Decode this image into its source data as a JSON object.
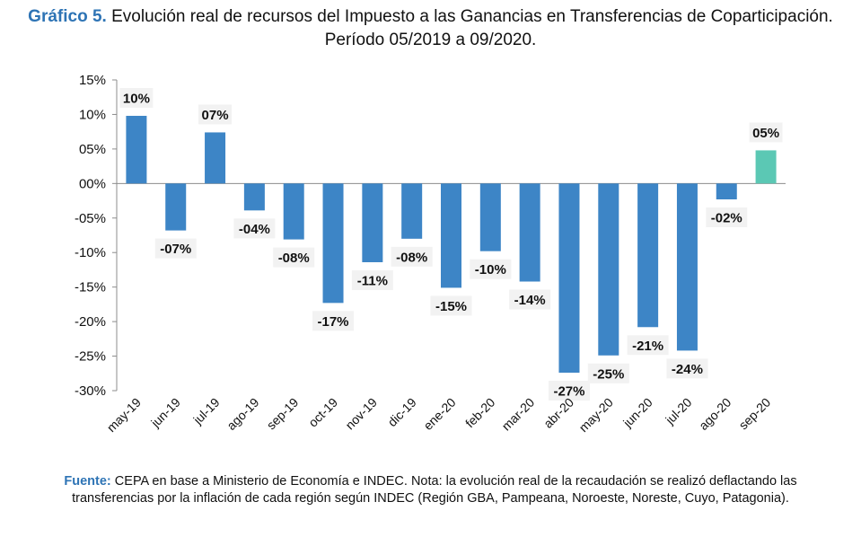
{
  "title": {
    "lead": "Gráfico 5.",
    "text": "Evolución real de recursos del Impuesto a las Ganancias en Transferencias de Coparticipación. Período 05/2019 a 09/2020."
  },
  "source": {
    "lead": "Fuente:",
    "text": "CEPA en base a Ministerio de Economía e INDEC. Nota: la evolución real de la recaudación se realizó deflactando las transferencias por la inflación de cada región según INDEC (Región GBA, Pampeana, Noroeste, Noreste, Cuyo, Patagonia)."
  },
  "colors": {
    "title_accent": "#2e74b5",
    "bar": "#3d85c6",
    "bar_highlight": "#5bc8b4",
    "label_bg": "#f2f2f2"
  },
  "chart_data": {
    "type": "bar",
    "categories": [
      "may-19",
      "jun-19",
      "jul-19",
      "ago-19",
      "sep-19",
      "oct-19",
      "nov-19",
      "dic-19",
      "ene-20",
      "feb-20",
      "mar-20",
      "abr-20",
      "may-20",
      "jun-20",
      "jul-20",
      "ago-20",
      "sep-20"
    ],
    "values": [
      9.8,
      -6.8,
      7.4,
      -3.9,
      -8.1,
      -17.3,
      -11.4,
      -8.0,
      -15.1,
      -9.8,
      -14.2,
      -27.4,
      -24.9,
      -20.8,
      -24.2,
      -2.3,
      4.8
    ],
    "data_labels": [
      "10%",
      "-07%",
      "07%",
      "-04%",
      "-08%",
      "-17%",
      "-11%",
      "-08%",
      "-15%",
      "-10%",
      "-14%",
      "-27%",
      "-25%",
      "-21%",
      "-24%",
      "-02%",
      "05%"
    ],
    "highlight_index": 16,
    "ylim": [
      -30,
      15
    ],
    "yticks": [
      15,
      10,
      5,
      0,
      -5,
      -10,
      -15,
      -20,
      -25,
      -30
    ],
    "ytick_labels": [
      "15%",
      "10%",
      "05%",
      "00%",
      "-05%",
      "-10%",
      "-15%",
      "-20%",
      "-25%",
      "-30%"
    ],
    "grid": false,
    "legend": "none",
    "xlabel": "",
    "ylabel": ""
  }
}
